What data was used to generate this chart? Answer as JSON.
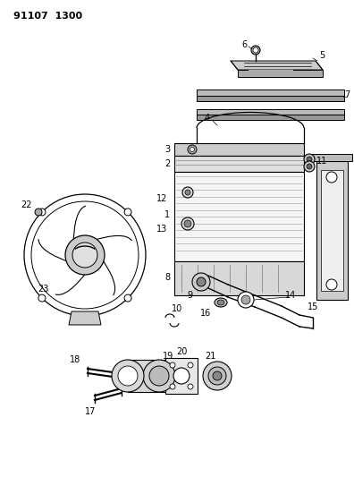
{
  "title": "91107  1300",
  "background_color": "#ffffff",
  "line_color": "#000000",
  "label_color": "#000000",
  "fig_width": 3.96,
  "fig_height": 5.33,
  "dpi": 100
}
